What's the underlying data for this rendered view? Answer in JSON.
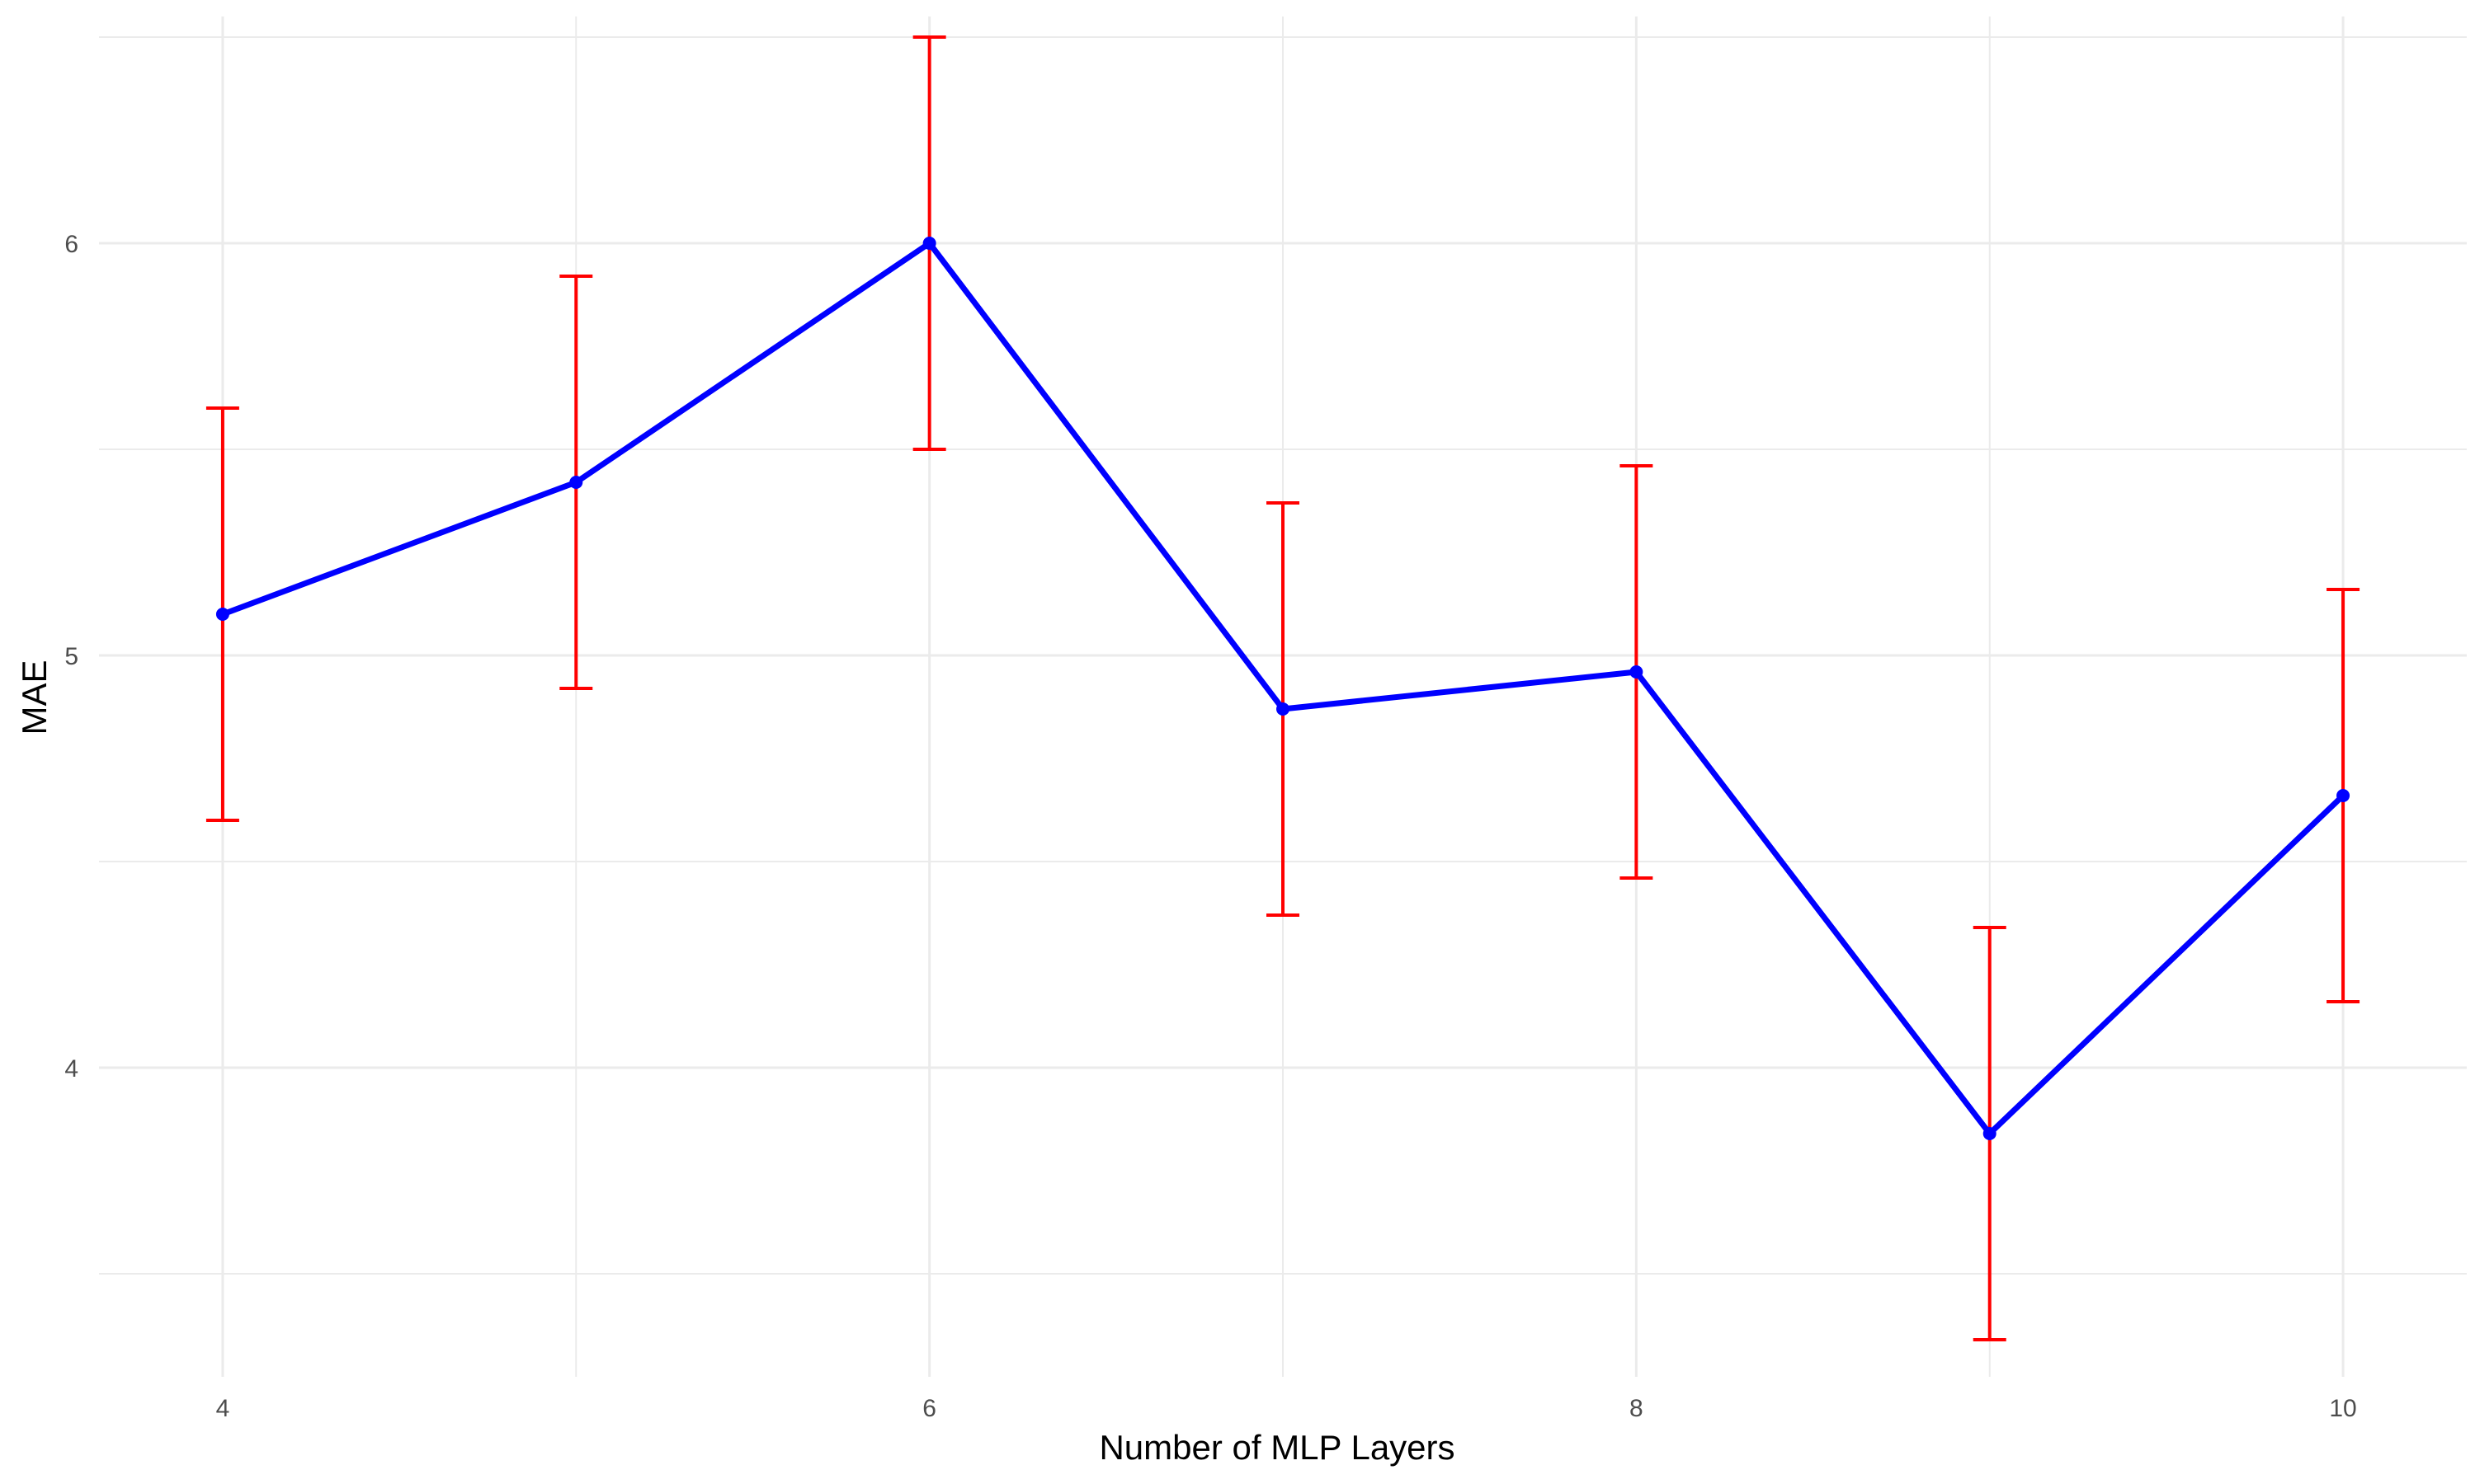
{
  "chart_data": {
    "type": "line",
    "title": "",
    "xlabel": "Number of MLP Layers",
    "ylabel": "MAE",
    "x": [
      4,
      5,
      6,
      7,
      8,
      9,
      10
    ],
    "series": [
      {
        "values": [
          5.1,
          5.42,
          6.0,
          4.87,
          4.96,
          3.84,
          4.66
        ],
        "error": [
          0.5,
          0.5,
          0.5,
          0.5,
          0.5,
          0.5,
          0.5
        ]
      }
    ],
    "xlim": [
      3.65,
      10.35
    ],
    "ylim": [
      3.25,
      6.55
    ],
    "xticks": [
      4,
      6,
      8,
      10
    ],
    "yticks": [
      4,
      5,
      6
    ],
    "xtick_labels": [
      "4",
      "6",
      "8",
      "10"
    ],
    "ytick_labels": [
      "4",
      "5",
      "6"
    ],
    "grid": true,
    "legend": "none",
    "colors": {
      "line": "#0000ff",
      "points": "#0000ff",
      "error_bars": "#ff0000",
      "grid": "#ebebeb",
      "background": "#ffffff"
    }
  }
}
